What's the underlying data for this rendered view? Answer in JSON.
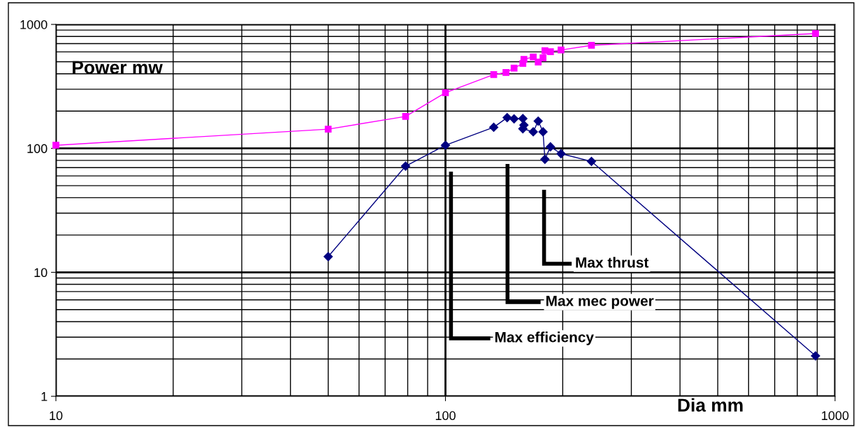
{
  "chart_data": {
    "type": "line",
    "xlabel": "Dia mm",
    "log": "xy",
    "xlim": [
      10,
      1000
    ],
    "ylim": [
      1,
      1000
    ],
    "xticks": [
      10,
      100,
      1000
    ],
    "yticks": [
      1,
      10,
      100,
      1000
    ],
    "grid": true,
    "series": [
      {
        "color": "#ff00ff",
        "marker": "square",
        "x": [
          10,
          50,
          79,
          100,
          133,
          143,
          150,
          158,
          159,
          168,
          173,
          178,
          180,
          186,
          198,
          237,
          891
        ],
        "values": [
          106,
          143,
          181,
          281,
          394,
          409,
          444,
          484,
          523,
          546,
          497,
          537,
          614,
          603,
          622,
          678,
          845
        ]
      },
      {
        "color": "#000080",
        "marker": "diamond",
        "x": [
          50,
          79,
          100,
          133,
          144,
          150,
          158,
          159,
          158,
          168,
          173,
          178,
          180,
          186,
          198,
          237,
          891
        ],
        "values": [
          13.4,
          72,
          106,
          148,
          177,
          173,
          174,
          154,
          144,
          136,
          166,
          136,
          81.7,
          103,
          90.6,
          78.5,
          2.12
        ]
      }
    ],
    "annotations": [
      "Power mw",
      "Max efficiency",
      "Max mec power",
      "Max thrust"
    ]
  }
}
